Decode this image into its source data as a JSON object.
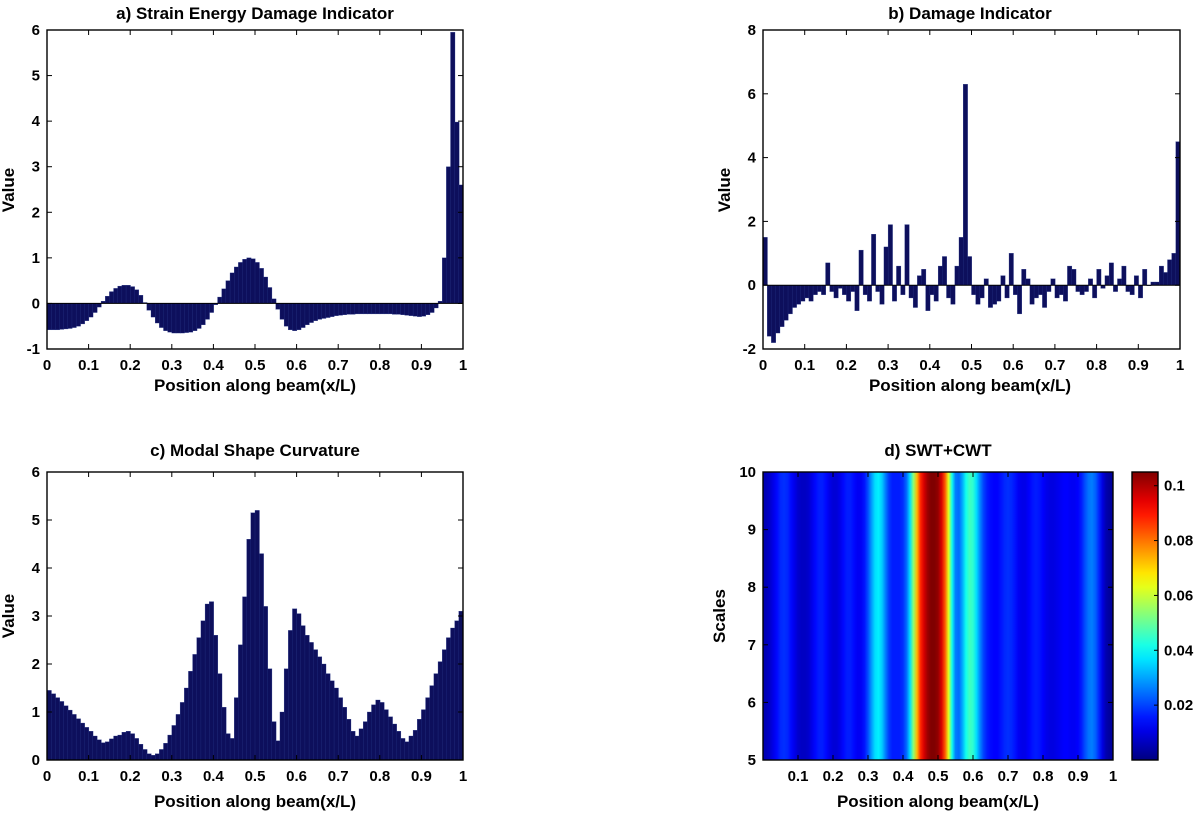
{
  "chart_data": [
    {
      "id": "a",
      "type": "bar",
      "title": "a)   Strain Energy Damage Indicator",
      "xlabel": "Position along beam(x/L)",
      "ylabel": "Value",
      "xlim": [
        0,
        1
      ],
      "ylim": [
        -1,
        6
      ],
      "xticks": [
        "0",
        "0.1",
        "0.2",
        "0.3",
        "0.4",
        "0.5",
        "0.6",
        "0.7",
        "0.8",
        "0.9",
        "1"
      ],
      "yticks": [
        "-1",
        "0",
        "1",
        "2",
        "3",
        "4",
        "5",
        "6"
      ],
      "bar_color": "#0d0f5c",
      "x": [
        0.005,
        0.015,
        0.025,
        0.035,
        0.045,
        0.055,
        0.065,
        0.075,
        0.085,
        0.095,
        0.105,
        0.115,
        0.125,
        0.135,
        0.145,
        0.155,
        0.165,
        0.175,
        0.185,
        0.195,
        0.205,
        0.215,
        0.225,
        0.235,
        0.245,
        0.255,
        0.265,
        0.275,
        0.285,
        0.295,
        0.305,
        0.315,
        0.325,
        0.335,
        0.345,
        0.355,
        0.365,
        0.375,
        0.385,
        0.395,
        0.405,
        0.415,
        0.425,
        0.435,
        0.445,
        0.455,
        0.465,
        0.475,
        0.485,
        0.495,
        0.505,
        0.515,
        0.525,
        0.535,
        0.545,
        0.555,
        0.565,
        0.575,
        0.585,
        0.595,
        0.605,
        0.615,
        0.625,
        0.635,
        0.645,
        0.655,
        0.665,
        0.675,
        0.685,
        0.695,
        0.705,
        0.715,
        0.725,
        0.735,
        0.745,
        0.755,
        0.765,
        0.775,
        0.785,
        0.795,
        0.805,
        0.815,
        0.825,
        0.835,
        0.845,
        0.855,
        0.865,
        0.875,
        0.885,
        0.895,
        0.905,
        0.915,
        0.925,
        0.935,
        0.945,
        0.955,
        0.965,
        0.975,
        0.985,
        0.995
      ],
      "values": [
        -0.58,
        -0.58,
        -0.58,
        -0.57,
        -0.56,
        -0.55,
        -0.53,
        -0.5,
        -0.45,
        -0.38,
        -0.3,
        -0.2,
        -0.08,
        0.05,
        0.16,
        0.26,
        0.33,
        0.38,
        0.4,
        0.4,
        0.37,
        0.3,
        0.18,
        0.02,
        -0.15,
        -0.3,
        -0.43,
        -0.53,
        -0.6,
        -0.63,
        -0.65,
        -0.65,
        -0.65,
        -0.64,
        -0.63,
        -0.6,
        -0.55,
        -0.47,
        -0.35,
        -0.2,
        -0.03,
        0.14,
        0.32,
        0.5,
        0.67,
        0.8,
        0.9,
        0.97,
        1.0,
        0.98,
        0.9,
        0.77,
        0.58,
        0.35,
        0.1,
        -0.13,
        -0.35,
        -0.5,
        -0.58,
        -0.6,
        -0.58,
        -0.53,
        -0.47,
        -0.42,
        -0.38,
        -0.35,
        -0.33,
        -0.31,
        -0.29,
        -0.27,
        -0.26,
        -0.25,
        -0.24,
        -0.24,
        -0.23,
        -0.23,
        -0.23,
        -0.23,
        -0.23,
        -0.23,
        -0.23,
        -0.23,
        -0.23,
        -0.24,
        -0.24,
        -0.25,
        -0.26,
        -0.27,
        -0.28,
        -0.29,
        -0.28,
        -0.25,
        -0.2,
        -0.1,
        0.05,
        1.0,
        3.0,
        5.95,
        3.98,
        2.6
      ]
    },
    {
      "id": "b",
      "type": "bar",
      "title": "b)   Damage Indicator",
      "xlabel": "Position along beam(x/L)",
      "ylabel": "Value",
      "xlim": [
        0,
        1
      ],
      "ylim": [
        -2,
        8
      ],
      "xticks": [
        "0",
        "0.1",
        "0.2",
        "0.3",
        "0.4",
        "0.5",
        "0.6",
        "0.7",
        "0.8",
        "0.9",
        "1"
      ],
      "yticks": [
        "-2",
        "0",
        "2",
        "4",
        "6",
        "8"
      ],
      "bar_color": "#0d0f5c",
      "x": [
        0.005,
        0.015,
        0.025,
        0.035,
        0.045,
        0.055,
        0.065,
        0.075,
        0.085,
        0.095,
        0.105,
        0.115,
        0.125,
        0.135,
        0.145,
        0.155,
        0.165,
        0.175,
        0.185,
        0.195,
        0.205,
        0.215,
        0.225,
        0.235,
        0.245,
        0.255,
        0.265,
        0.275,
        0.285,
        0.295,
        0.305,
        0.315,
        0.325,
        0.335,
        0.345,
        0.355,
        0.365,
        0.375,
        0.385,
        0.395,
        0.405,
        0.415,
        0.425,
        0.435,
        0.445,
        0.455,
        0.465,
        0.475,
        0.485,
        0.495,
        0.505,
        0.515,
        0.525,
        0.535,
        0.545,
        0.555,
        0.565,
        0.575,
        0.585,
        0.595,
        0.605,
        0.615,
        0.625,
        0.635,
        0.645,
        0.655,
        0.665,
        0.675,
        0.685,
        0.695,
        0.705,
        0.715,
        0.725,
        0.735,
        0.745,
        0.755,
        0.765,
        0.775,
        0.785,
        0.795,
        0.805,
        0.815,
        0.825,
        0.835,
        0.845,
        0.855,
        0.865,
        0.875,
        0.885,
        0.895,
        0.905,
        0.915,
        0.925,
        0.935,
        0.945,
        0.955,
        0.965,
        0.975,
        0.985,
        0.995
      ],
      "values": [
        1.5,
        -1.6,
        -1.8,
        -1.5,
        -1.3,
        -1.1,
        -0.9,
        -0.7,
        -0.6,
        -0.5,
        -0.4,
        -0.5,
        -0.3,
        -0.2,
        -0.3,
        0.7,
        -0.2,
        -0.4,
        -0.1,
        -0.3,
        -0.5,
        -0.2,
        -0.8,
        1.1,
        -0.3,
        -0.5,
        1.6,
        -0.2,
        -0.6,
        1.2,
        1.9,
        -0.5,
        0.6,
        -0.3,
        1.9,
        -0.4,
        -0.7,
        0.3,
        0.5,
        -0.8,
        -0.3,
        -0.5,
        0.6,
        0.9,
        -0.4,
        -0.6,
        0.6,
        1.5,
        6.3,
        0.9,
        -0.3,
        -0.6,
        -0.4,
        0.2,
        -0.7,
        -0.6,
        -0.5,
        0.3,
        -0.4,
        1.0,
        -0.3,
        -0.9,
        0.5,
        0.2,
        -0.6,
        -0.4,
        -0.3,
        -0.7,
        -0.2,
        0.2,
        -0.4,
        -0.3,
        -0.5,
        0.6,
        0.5,
        -0.2,
        -0.3,
        -0.2,
        0.2,
        -0.4,
        0.5,
        -0.1,
        0.3,
        0.7,
        -0.2,
        0.2,
        0.6,
        -0.2,
        -0.3,
        0.3,
        -0.4,
        0.5,
        0.0,
        0.1,
        0.1,
        0.6,
        0.4,
        0.8,
        1.0,
        4.5
      ]
    },
    {
      "id": "c",
      "type": "bar",
      "title": "c)   Modal Shape Curvature",
      "xlabel": "Position along beam(x/L)",
      "ylabel": "Value",
      "xlim": [
        0,
        1
      ],
      "ylim": [
        0,
        6
      ],
      "xticks": [
        "0",
        "0.1",
        "0.2",
        "0.3",
        "0.4",
        "0.5",
        "0.6",
        "0.7",
        "0.8",
        "0.9",
        "1"
      ],
      "yticks": [
        "0",
        "1",
        "2",
        "3",
        "4",
        "5",
        "6"
      ],
      "bar_color": "#0d0f5c",
      "x": [
        0.005,
        0.015,
        0.025,
        0.035,
        0.045,
        0.055,
        0.065,
        0.075,
        0.085,
        0.095,
        0.105,
        0.115,
        0.125,
        0.135,
        0.145,
        0.155,
        0.165,
        0.175,
        0.185,
        0.195,
        0.205,
        0.215,
        0.225,
        0.235,
        0.245,
        0.255,
        0.265,
        0.275,
        0.285,
        0.295,
        0.305,
        0.315,
        0.325,
        0.335,
        0.345,
        0.355,
        0.365,
        0.375,
        0.385,
        0.395,
        0.405,
        0.415,
        0.425,
        0.435,
        0.445,
        0.455,
        0.465,
        0.475,
        0.485,
        0.495,
        0.505,
        0.515,
        0.525,
        0.535,
        0.545,
        0.555,
        0.565,
        0.575,
        0.585,
        0.595,
        0.605,
        0.615,
        0.625,
        0.635,
        0.645,
        0.655,
        0.665,
        0.675,
        0.685,
        0.695,
        0.705,
        0.715,
        0.725,
        0.735,
        0.745,
        0.755,
        0.765,
        0.775,
        0.785,
        0.795,
        0.805,
        0.815,
        0.825,
        0.835,
        0.845,
        0.855,
        0.865,
        0.875,
        0.885,
        0.895,
        0.905,
        0.915,
        0.925,
        0.935,
        0.945,
        0.955,
        0.965,
        0.975,
        0.985,
        0.995
      ],
      "values": [
        1.45,
        1.38,
        1.3,
        1.22,
        1.13,
        1.04,
        0.95,
        0.86,
        0.77,
        0.68,
        0.6,
        0.5,
        0.42,
        0.36,
        0.38,
        0.44,
        0.5,
        0.52,
        0.58,
        0.6,
        0.55,
        0.45,
        0.33,
        0.22,
        0.13,
        0.1,
        0.13,
        0.22,
        0.35,
        0.52,
        0.72,
        0.95,
        1.2,
        1.5,
        1.85,
        2.2,
        2.55,
        2.9,
        3.25,
        3.3,
        2.6,
        1.8,
        1.1,
        0.55,
        0.45,
        1.3,
        2.4,
        3.4,
        4.6,
        5.15,
        5.2,
        4.3,
        3.2,
        1.9,
        0.8,
        0.4,
        1.0,
        1.9,
        2.7,
        3.15,
        3.05,
        2.8,
        2.6,
        2.45,
        2.3,
        2.15,
        2.0,
        1.8,
        1.65,
        1.5,
        1.3,
        1.1,
        0.85,
        0.6,
        0.5,
        0.65,
        0.8,
        1.0,
        1.15,
        1.25,
        1.2,
        1.05,
        0.9,
        0.75,
        0.6,
        0.45,
        0.38,
        0.5,
        0.62,
        0.85,
        1.05,
        1.3,
        1.55,
        1.8,
        2.05,
        2.3,
        2.55,
        2.75,
        2.9,
        3.1
      ]
    },
    {
      "id": "d",
      "type": "heatmap",
      "title": "d)   SWT+CWT",
      "xlabel": "Position along beam(x/L)",
      "ylabel": "Scales",
      "xlim": [
        0,
        1
      ],
      "ylim": [
        5,
        10
      ],
      "xticks": [
        "0.1",
        "0.2",
        "0.3",
        "0.4",
        "0.5",
        "0.6",
        "0.7",
        "0.8",
        "0.9",
        "1"
      ],
      "yticks": [
        "5",
        "6",
        "7",
        "8",
        "9",
        "10"
      ],
      "colormap": "jet",
      "clim": [
        0,
        0.105
      ],
      "colorbar_ticks": [
        "0.02",
        "0.04",
        "0.06",
        "0.08",
        "0.1"
      ],
      "x": [
        0.0,
        0.01,
        0.02,
        0.03,
        0.04,
        0.05,
        0.06,
        0.07,
        0.08,
        0.09,
        0.1,
        0.11,
        0.12,
        0.13,
        0.14,
        0.15,
        0.16,
        0.17,
        0.18,
        0.19,
        0.2,
        0.21,
        0.22,
        0.23,
        0.24,
        0.25,
        0.26,
        0.27,
        0.28,
        0.29,
        0.3,
        0.31,
        0.32,
        0.33,
        0.34,
        0.35,
        0.36,
        0.37,
        0.38,
        0.39,
        0.4,
        0.41,
        0.42,
        0.43,
        0.44,
        0.45,
        0.46,
        0.47,
        0.48,
        0.49,
        0.5,
        0.51,
        0.52,
        0.53,
        0.54,
        0.55,
        0.56,
        0.57,
        0.58,
        0.59,
        0.6,
        0.61,
        0.62,
        0.63,
        0.64,
        0.65,
        0.66,
        0.67,
        0.68,
        0.69,
        0.7,
        0.71,
        0.72,
        0.73,
        0.74,
        0.75,
        0.76,
        0.77,
        0.78,
        0.79,
        0.8,
        0.81,
        0.82,
        0.83,
        0.84,
        0.85,
        0.86,
        0.87,
        0.88,
        0.89,
        0.9,
        0.91,
        0.92,
        0.93,
        0.94,
        0.95,
        0.96,
        0.97,
        0.98,
        0.99,
        1.0
      ],
      "values": [
        0.005,
        0.006,
        0.008,
        0.011,
        0.014,
        0.017,
        0.018,
        0.017,
        0.014,
        0.011,
        0.008,
        0.007,
        0.007,
        0.008,
        0.011,
        0.014,
        0.016,
        0.016,
        0.014,
        0.011,
        0.009,
        0.009,
        0.011,
        0.014,
        0.016,
        0.016,
        0.014,
        0.012,
        0.012,
        0.015,
        0.021,
        0.029,
        0.036,
        0.038,
        0.034,
        0.026,
        0.019,
        0.016,
        0.016,
        0.016,
        0.018,
        0.024,
        0.036,
        0.054,
        0.073,
        0.088,
        0.096,
        0.102,
        0.105,
        0.105,
        0.103,
        0.096,
        0.083,
        0.063,
        0.041,
        0.026,
        0.024,
        0.031,
        0.041,
        0.046,
        0.044,
        0.036,
        0.027,
        0.02,
        0.016,
        0.014,
        0.013,
        0.013,
        0.015,
        0.017,
        0.018,
        0.017,
        0.015,
        0.012,
        0.011,
        0.011,
        0.013,
        0.015,
        0.016,
        0.015,
        0.013,
        0.011,
        0.01,
        0.01,
        0.011,
        0.012,
        0.013,
        0.013,
        0.012,
        0.012,
        0.013,
        0.016,
        0.021,
        0.025,
        0.026,
        0.023,
        0.017,
        0.01,
        0.005,
        0.003,
        0.003
      ]
    }
  ]
}
